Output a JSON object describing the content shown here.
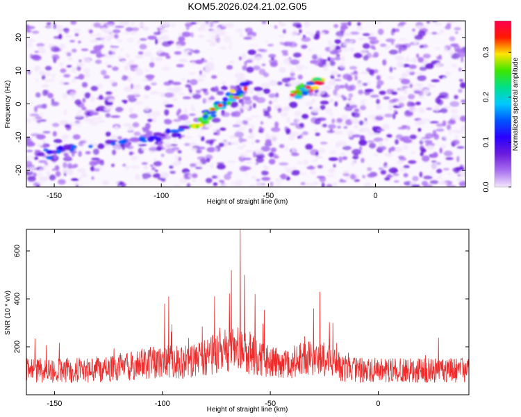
{
  "title": "KOM5.2026.024.21.02.G05",
  "colors": {
    "spectrum": [
      "#f2e6fb",
      "#a86ef0",
      "#6a1bdc",
      "#2a00ff",
      "#0055ff",
      "#00c8ff",
      "#00e08a",
      "#3ce600",
      "#ffe600",
      "#ff1a00",
      "#ff0050"
    ],
    "snr_line": "#ee2a2a",
    "frame": "#000000"
  },
  "chart_data": [
    {
      "type": "heatmap",
      "name": "spectrogram",
      "xlabel": "Height of straight line (km)",
      "ylabel": "Frequency (Hz)",
      "xlim": [
        -163,
        42
      ],
      "ylim": [
        -25,
        25
      ],
      "xticks": [
        -150,
        -100,
        -50,
        0
      ],
      "xtick_labels": [
        "-150",
        "-100",
        "-50",
        "0"
      ],
      "yticks": [
        -20,
        -10,
        0,
        10,
        20
      ],
      "ytick_labels": [
        "-20",
        "-10",
        "0",
        "10",
        "20"
      ],
      "colorbar": {
        "label": "Normalized spectral amplitude",
        "range": [
          0,
          0.37
        ],
        "ticks": [
          0.0,
          0.1,
          0.2,
          0.3
        ],
        "tick_labels": [
          "0.0",
          "0.1",
          "0.2",
          "0.3"
        ]
      },
      "features": [
        {
          "name": "lower-left streak",
          "x_range": [
            -160,
            -85
          ],
          "y_range": [
            -16,
            -8
          ],
          "peak_amplitude": 0.15
        },
        {
          "name": "central diagonal streak",
          "x_range": [
            -85,
            -60
          ],
          "y_range": [
            -7,
            6
          ],
          "peak_amplitude": 0.33
        },
        {
          "name": "right bright spot",
          "x_range": [
            -38,
            -25
          ],
          "y_range": [
            3,
            7
          ],
          "peak_amplitude": 0.36
        }
      ]
    },
    {
      "type": "line",
      "name": "snr",
      "xlabel": "Height of straight line (km)",
      "ylabel": "SNR (10 * v/v)",
      "xlim": [
        -163,
        42
      ],
      "ylim": [
        0,
        690
      ],
      "xticks": [
        -150,
        -100,
        -50,
        0
      ],
      "xtick_labels": [
        "-150",
        "-100",
        "-50",
        "0"
      ],
      "yticks": [
        200,
        400,
        600
      ],
      "ytick_labels": [
        "200",
        "400",
        "600"
      ],
      "baseline_mean": 110,
      "peaks": [
        {
          "x": -64,
          "y": 690
        },
        {
          "x": -68,
          "y": 520
        },
        {
          "x": -62,
          "y": 500
        },
        {
          "x": -57,
          "y": 420
        },
        {
          "x": -27,
          "y": 430
        },
        {
          "x": -97,
          "y": 410
        },
        {
          "x": -99,
          "y": 380
        },
        {
          "x": -30,
          "y": 360
        }
      ]
    }
  ]
}
